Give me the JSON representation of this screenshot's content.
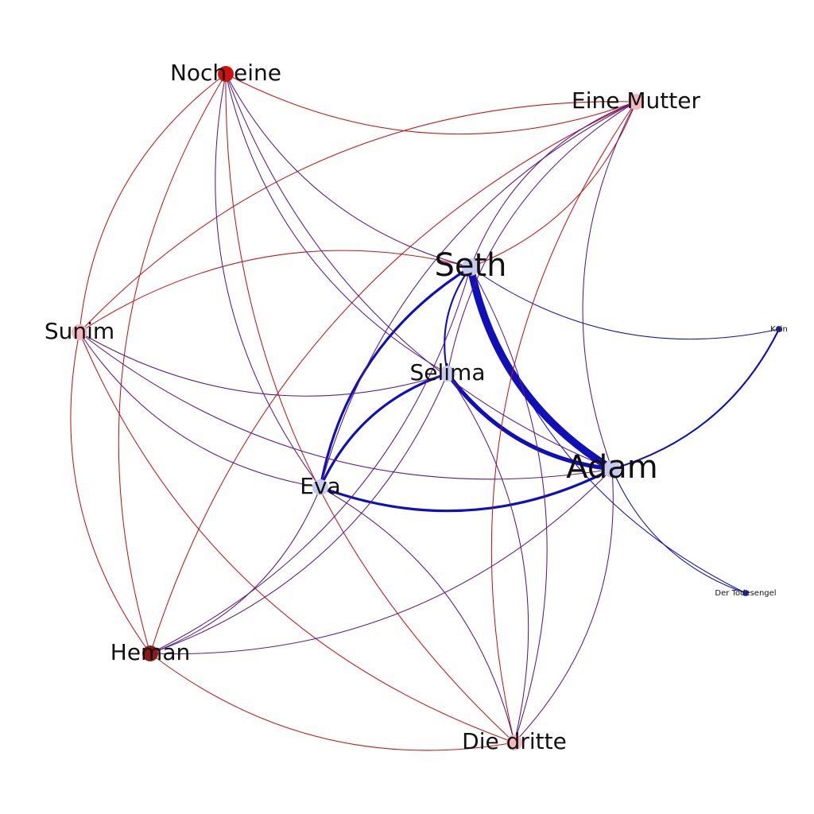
{
  "graph": {
    "nodes": [
      {
        "id": "seth",
        "label": "Seth",
        "color": "#c8cbef",
        "size_rank": 1
      },
      {
        "id": "adam",
        "label": "Adam",
        "color": "#c8cbef",
        "size_rank": 1
      },
      {
        "id": "selima",
        "label": "Selima",
        "color": "#c8cbef",
        "size_rank": 3
      },
      {
        "id": "eva",
        "label": "Eva",
        "color": "#c8cbef",
        "size_rank": 3
      },
      {
        "id": "nocheine",
        "label": "Noch eine",
        "color": "#cc1111",
        "size_rank": 2
      },
      {
        "id": "einemutter",
        "label": "Eine Mutter",
        "color": "#f2b8c0",
        "size_rank": 2
      },
      {
        "id": "sunim",
        "label": "Sunim",
        "color": "#f2b8c0",
        "size_rank": 2
      },
      {
        "id": "heman",
        "label": "Heman",
        "color": "#8a1a1a",
        "size_rank": 2
      },
      {
        "id": "diedritte",
        "label": "Die dritte",
        "color": "#f2b8c0",
        "size_rank": 2
      },
      {
        "id": "kain",
        "label": "Kain",
        "color": "#3333aa",
        "size_rank": 5
      },
      {
        "id": "todesengel",
        "label": "Der Todesengel",
        "color": "#3333aa",
        "size_rank": 5
      }
    ],
    "edge_colors": {
      "blue": "#1010b8",
      "red": "#c01818",
      "purple": "#5a1a82"
    },
    "edges": [
      {
        "source": "seth",
        "target": "adam",
        "color": "blue",
        "weight": 9
      },
      {
        "source": "selima",
        "target": "adam",
        "color": "blue",
        "weight": 5
      },
      {
        "source": "seth",
        "target": "eva",
        "color": "blue",
        "weight": 3
      },
      {
        "source": "selima",
        "target": "eva",
        "color": "blue",
        "weight": 3
      },
      {
        "source": "eva",
        "target": "adam",
        "color": "blue",
        "weight": 3
      },
      {
        "source": "seth",
        "target": "selima",
        "color": "blue",
        "weight": 2
      },
      {
        "source": "adam",
        "target": "kain",
        "color": "blue",
        "weight": 2
      },
      {
        "source": "seth",
        "target": "kain",
        "color": "blue",
        "weight": 1
      },
      {
        "source": "seth",
        "target": "todesengel",
        "color": "blue",
        "weight": 1
      },
      {
        "source": "adam",
        "target": "todesengel",
        "color": "blue",
        "weight": 1
      },
      {
        "source": "nocheine",
        "target": "einemutter",
        "color": "red",
        "weight": 1
      },
      {
        "source": "nocheine",
        "target": "sunim",
        "color": "red",
        "weight": 1
      },
      {
        "source": "nocheine",
        "target": "heman",
        "color": "red",
        "weight": 1
      },
      {
        "source": "nocheine",
        "target": "diedritte",
        "color": "red",
        "weight": 1
      },
      {
        "source": "einemutter",
        "target": "sunim",
        "color": "red",
        "weight": 1
      },
      {
        "source": "einemutter",
        "target": "heman",
        "color": "red",
        "weight": 1
      },
      {
        "source": "einemutter",
        "target": "diedritte",
        "color": "red",
        "weight": 1
      },
      {
        "source": "sunim",
        "target": "heman",
        "color": "red",
        "weight": 1
      },
      {
        "source": "sunim",
        "target": "diedritte",
        "color": "red",
        "weight": 1
      },
      {
        "source": "heman",
        "target": "diedritte",
        "color": "red",
        "weight": 1
      },
      {
        "source": "seth",
        "target": "sunim",
        "color": "red",
        "weight": 1
      },
      {
        "source": "seth",
        "target": "einemutter",
        "color": "red",
        "weight": 1
      },
      {
        "source": "nocheine",
        "target": "seth",
        "color": "purple",
        "weight": 1
      },
      {
        "source": "nocheine",
        "target": "selima",
        "color": "purple",
        "weight": 1
      },
      {
        "source": "nocheine",
        "target": "eva",
        "color": "purple",
        "weight": 1
      },
      {
        "source": "nocheine",
        "target": "adam",
        "color": "purple",
        "weight": 1
      },
      {
        "source": "einemutter",
        "target": "selima",
        "color": "purple",
        "weight": 1
      },
      {
        "source": "einemutter",
        "target": "eva",
        "color": "purple",
        "weight": 1
      },
      {
        "source": "einemutter",
        "target": "adam",
        "color": "purple",
        "weight": 1
      },
      {
        "source": "einemutter",
        "target": "seth",
        "color": "purple",
        "weight": 1
      },
      {
        "source": "sunim",
        "target": "selima",
        "color": "purple",
        "weight": 1
      },
      {
        "source": "sunim",
        "target": "eva",
        "color": "purple",
        "weight": 1
      },
      {
        "source": "sunim",
        "target": "adam",
        "color": "purple",
        "weight": 1
      },
      {
        "source": "heman",
        "target": "selima",
        "color": "purple",
        "weight": 1
      },
      {
        "source": "heman",
        "target": "eva",
        "color": "purple",
        "weight": 1
      },
      {
        "source": "heman",
        "target": "adam",
        "color": "purple",
        "weight": 1
      },
      {
        "source": "heman",
        "target": "seth",
        "color": "purple",
        "weight": 1
      },
      {
        "source": "diedritte",
        "target": "seth",
        "color": "purple",
        "weight": 1
      },
      {
        "source": "diedritte",
        "target": "selima",
        "color": "purple",
        "weight": 1
      },
      {
        "source": "diedritte",
        "target": "eva",
        "color": "purple",
        "weight": 1
      },
      {
        "source": "diedritte",
        "target": "adam",
        "color": "purple",
        "weight": 1
      }
    ]
  }
}
